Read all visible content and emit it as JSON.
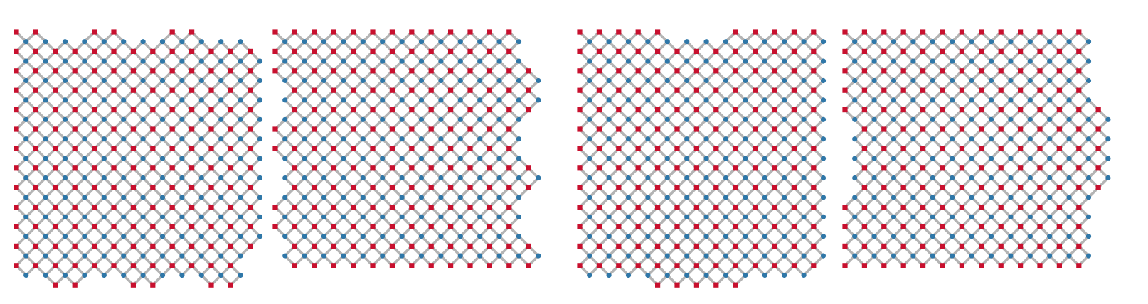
{
  "colors": {
    "data_qubit": "#2f77a8",
    "ancilla": "#c8102e",
    "edge": "#b4b4b4",
    "background": "#ffffff"
  },
  "panels": [
    {
      "id": "lattice-1",
      "grid": {
        "cols": 13,
        "rows": 13
      },
      "row_ranges": [
        [
          [
            0,
            1
          ],
          [
            4,
            5
          ],
          [
            8,
            9
          ]
        ],
        [
          [
            0,
            12
          ]
        ],
        [
          [
            0,
            12
          ]
        ],
        [
          [
            0,
            12
          ]
        ],
        [
          [
            0,
            12
          ]
        ],
        [
          [
            0,
            12
          ]
        ],
        [
          [
            0,
            12
          ]
        ],
        [
          [
            0,
            12
          ]
        ],
        [
          [
            0,
            12
          ]
        ],
        [
          [
            0,
            12
          ]
        ],
        [
          [
            0,
            12
          ]
        ],
        [
          [
            0,
            12
          ]
        ],
        [
          [
            0,
            11
          ]
        ],
        [
          [
            2,
            3
          ],
          [
            6,
            7
          ],
          [
            10,
            11
          ]
        ]
      ]
    },
    {
      "id": "lattice-2",
      "grid": {
        "cols": 13,
        "rows": 12
      },
      "row_ranges": [
        [
          [
            0,
            12
          ]
        ],
        [
          [
            0,
            12
          ]
        ],
        [
          [
            0,
            13
          ]
        ],
        [
          [
            1,
            13
          ]
        ],
        [
          [
            1,
            13
          ]
        ],
        [
          [
            0,
            12
          ]
        ],
        [
          [
            0,
            12
          ]
        ],
        [
          [
            1,
            13
          ]
        ],
        [
          [
            1,
            13
          ]
        ],
        [
          [
            0,
            12
          ]
        ],
        [
          [
            0,
            12
          ]
        ],
        [
          [
            1,
            13
          ]
        ],
        [
          [
            1,
            13
          ]
        ]
      ]
    },
    {
      "id": "lattice-3",
      "grid": {
        "cols": 12,
        "rows": 13
      },
      "row_ranges": [
        [
          [
            0,
            4
          ],
          [
            8,
            12
          ]
        ],
        [
          [
            0,
            12
          ]
        ],
        [
          [
            0,
            12
          ]
        ],
        [
          [
            0,
            12
          ]
        ],
        [
          [
            0,
            12
          ]
        ],
        [
          [
            0,
            12
          ]
        ],
        [
          [
            0,
            12
          ]
        ],
        [
          [
            0,
            12
          ]
        ],
        [
          [
            0,
            12
          ]
        ],
        [
          [
            0,
            12
          ]
        ],
        [
          [
            0,
            12
          ]
        ],
        [
          [
            0,
            12
          ]
        ],
        [
          [
            0,
            12
          ]
        ],
        [
          [
            4,
            8
          ]
        ]
      ]
    },
    {
      "id": "lattice-4",
      "grid": {
        "cols": 12,
        "rows": 12
      },
      "row_ranges": [
        [
          [
            0,
            12
          ]
        ],
        [
          [
            0,
            12
          ]
        ],
        [
          [
            0,
            12
          ]
        ],
        [
          [
            0,
            12
          ]
        ],
        [
          [
            0,
            13
          ]
        ],
        [
          [
            1,
            13
          ]
        ],
        [
          [
            1,
            13
          ]
        ],
        [
          [
            1,
            13
          ]
        ],
        [
          [
            1,
            13
          ]
        ],
        [
          [
            0,
            12
          ]
        ],
        [
          [
            0,
            12
          ]
        ],
        [
          [
            0,
            12
          ]
        ],
        [
          [
            0,
            12
          ]
        ]
      ]
    }
  ]
}
